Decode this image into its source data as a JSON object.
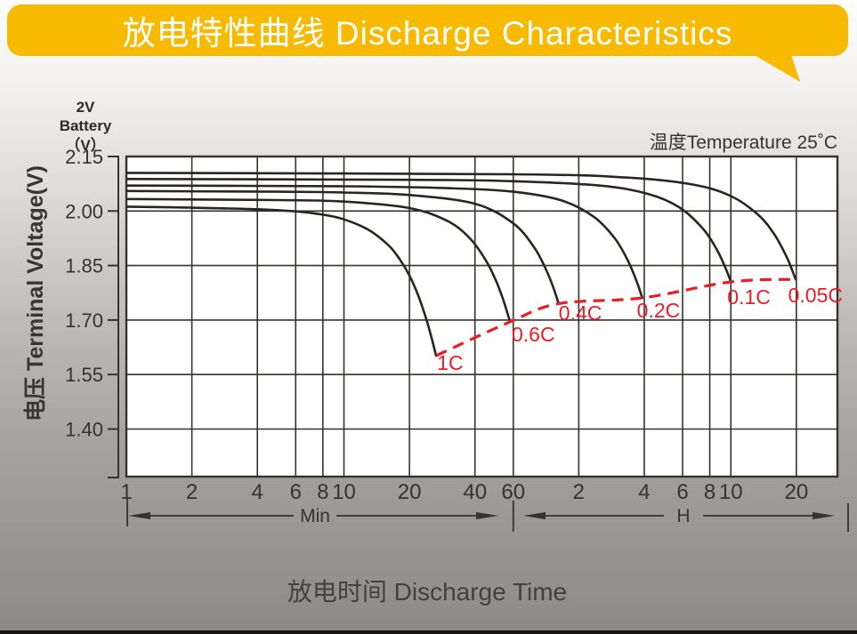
{
  "banner": {
    "title": "放电特性曲线 Discharge Characteristics",
    "color": "#F8BA01",
    "text_color": "#FFFFFF"
  },
  "battery_label": {
    "line1": "2V",
    "line2": "Battery",
    "line3": "（V）"
  },
  "chart_meta": {
    "temperature_note": "温度Temperature 25˚C"
  },
  "axes": {
    "y_title": "电压 Terminal Voltage(V)",
    "x_title": "放电时间 Discharge Time"
  },
  "chart_data": {
    "type": "line",
    "title": "放电特性曲线 Discharge Characteristics",
    "x_scale": "log",
    "x_unit_note": "time axis in minutes (Min section 1-60, H section 2h-20h)",
    "x_range_minutes": [
      1,
      1850
    ],
    "y_range_volts": [
      1.27,
      2.15
    ],
    "grid": "on",
    "grid_color": "#37322F",
    "curve_color": "#2A2522",
    "y_ticks": [
      "2.15",
      "2.00",
      "1.85",
      "1.70",
      "1.55",
      "1.40"
    ],
    "x_ticks": [
      {
        "t": 1,
        "label": "1",
        "unit": "Min"
      },
      {
        "t": 2,
        "label": "2",
        "unit": "Min"
      },
      {
        "t": 4,
        "label": "4",
        "unit": "Min"
      },
      {
        "t": 6,
        "label": "6",
        "unit": "Min"
      },
      {
        "t": 8,
        "label": "8",
        "unit": "Min"
      },
      {
        "t": 10,
        "label": "10",
        "unit": "Min"
      },
      {
        "t": 20,
        "label": "20",
        "unit": "Min"
      },
      {
        "t": 40,
        "label": "40",
        "unit": "Min"
      },
      {
        "t": 60,
        "label": "60",
        "unit": "Min"
      },
      {
        "t": 120,
        "label": "2",
        "unit": "H"
      },
      {
        "t": 240,
        "label": "4",
        "unit": "H"
      },
      {
        "t": 360,
        "label": "6",
        "unit": "H"
      },
      {
        "t": 480,
        "label": "8",
        "unit": "H"
      },
      {
        "t": 600,
        "label": "10",
        "unit": "H"
      },
      {
        "t": 1200,
        "label": "20",
        "unit": "H"
      }
    ],
    "x_units": [
      {
        "label": "Min"
      },
      {
        "label": "H"
      }
    ],
    "series": [
      {
        "name": "1C",
        "points": [
          [
            1,
            2.012
          ],
          [
            2,
            2.009
          ],
          [
            4,
            2.005
          ],
          [
            6,
            1.999
          ],
          [
            8,
            1.99
          ],
          [
            10,
            1.977
          ],
          [
            13,
            1.948
          ],
          [
            16,
            1.906
          ],
          [
            18,
            1.868
          ],
          [
            20,
            1.822
          ],
          [
            22,
            1.766
          ],
          [
            24,
            1.699
          ],
          [
            25.5,
            1.642
          ],
          [
            26.5,
            1.602
          ]
        ],
        "label_at": [
          26.8,
          1.563
        ]
      },
      {
        "name": "0.6C",
        "points": [
          [
            1,
            2.033
          ],
          [
            5,
            2.03
          ],
          [
            10,
            2.026
          ],
          [
            20,
            2.008
          ],
          [
            30,
            1.972
          ],
          [
            38,
            1.924
          ],
          [
            45,
            1.863
          ],
          [
            50,
            1.808
          ],
          [
            54,
            1.755
          ],
          [
            58,
            1.695
          ]
        ],
        "label_at": [
          59,
          1.641
        ]
      },
      {
        "name": "0.4C",
        "points": [
          [
            1,
            2.055
          ],
          [
            5,
            2.053
          ],
          [
            10,
            2.051
          ],
          [
            20,
            2.044
          ],
          [
            40,
            2.02
          ],
          [
            60,
            1.966
          ],
          [
            75,
            1.899
          ],
          [
            85,
            1.838
          ],
          [
            92,
            1.787
          ],
          [
            97,
            1.745
          ]
        ],
        "label_at": [
          97,
          1.7
        ]
      },
      {
        "name": "0.2C",
        "points": [
          [
            1,
            2.07
          ],
          [
            10,
            2.068
          ],
          [
            30,
            2.063
          ],
          [
            60,
            2.053
          ],
          [
            100,
            2.029
          ],
          [
            140,
            1.985
          ],
          [
            175,
            1.926
          ],
          [
            200,
            1.868
          ],
          [
            220,
            1.811
          ],
          [
            235,
            1.761
          ]
        ],
        "label_at": [
          222,
          1.707
        ]
      },
      {
        "name": "0.1C",
        "points": [
          [
            1,
            2.088
          ],
          [
            20,
            2.086
          ],
          [
            60,
            2.082
          ],
          [
            150,
            2.07
          ],
          [
            250,
            2.047
          ],
          [
            350,
            2.009
          ],
          [
            450,
            1.949
          ],
          [
            520,
            1.891
          ],
          [
            570,
            1.84
          ],
          [
            600,
            1.805
          ]
        ],
        "label_at": [
          578,
          1.744
        ]
      },
      {
        "name": "0.05C",
        "points": [
          [
            1,
            2.105
          ],
          [
            60,
            2.101
          ],
          [
            200,
            2.092
          ],
          [
            400,
            2.073
          ],
          [
            600,
            2.041
          ],
          [
            800,
            1.99
          ],
          [
            950,
            1.936
          ],
          [
            1080,
            1.875
          ],
          [
            1150,
            1.836
          ],
          [
            1190,
            1.812
          ]
        ],
        "label_at": [
          1100,
          1.749
        ]
      }
    ],
    "cutoff_line": {
      "name": "discharge-end-voltage-line",
      "color": "#EC1C24",
      "style": "dashed",
      "points": [
        [
          26.5,
          1.602
        ],
        [
          58,
          1.695
        ],
        [
          97,
          1.745
        ],
        [
          235,
          1.761
        ],
        [
          600,
          1.805
        ],
        [
          1190,
          1.812
        ]
      ]
    }
  }
}
